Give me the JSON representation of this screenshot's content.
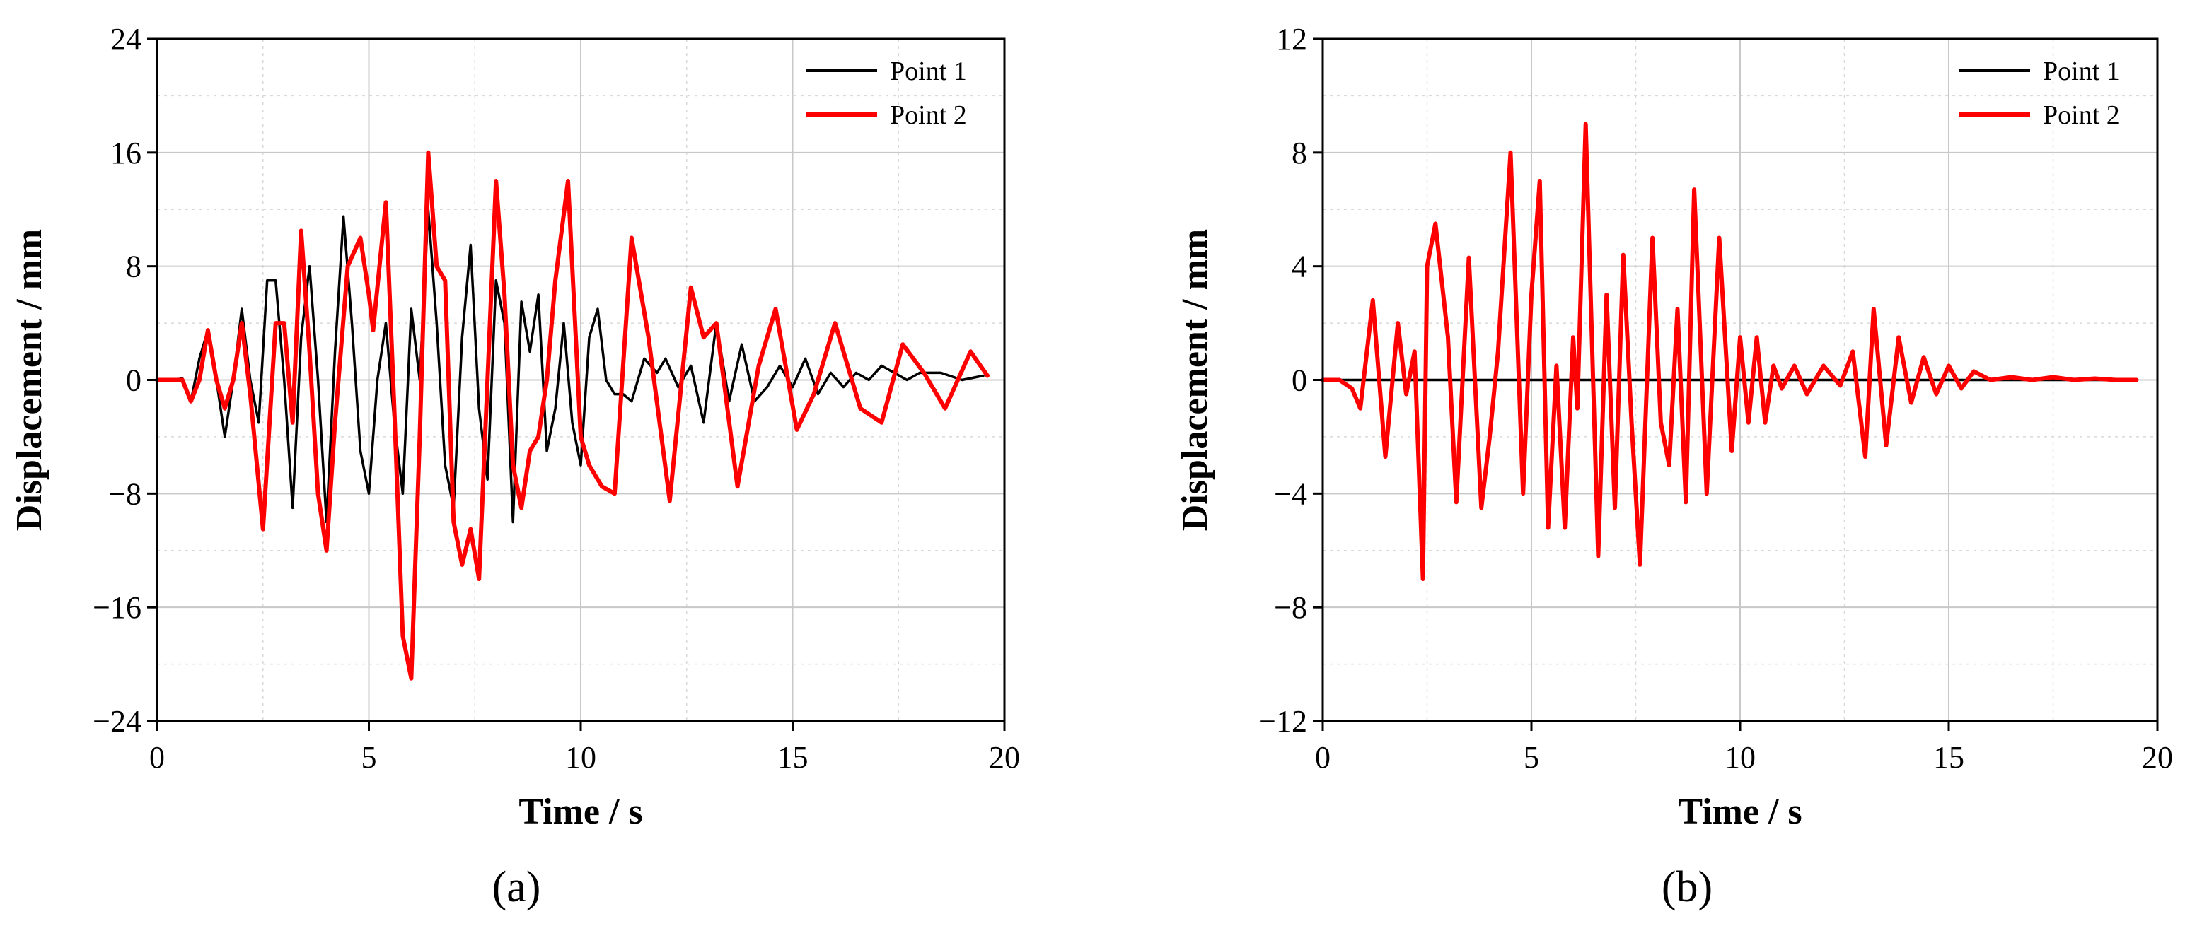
{
  "chart_data": [
    {
      "type": "line",
      "panel_label": "(a)",
      "xlabel": "Time / s",
      "ylabel": "Displacement / mm",
      "xlim": [
        0,
        20
      ],
      "ylim": [
        -24,
        24
      ],
      "xticks": [
        0,
        5,
        10,
        15,
        20
      ],
      "yticks": [
        -24,
        -16,
        -8,
        0,
        8,
        16,
        24
      ],
      "grid": true,
      "legend_position": "top-right",
      "series": [
        {
          "name": "Point 1",
          "color": "#000000",
          "x": [
            0,
            0.3,
            0.6,
            0.8,
            1.0,
            1.2,
            1.4,
            1.6,
            1.8,
            2.0,
            2.2,
            2.4,
            2.6,
            2.8,
            3.0,
            3.2,
            3.4,
            3.6,
            3.8,
            4.0,
            4.2,
            4.4,
            4.6,
            4.8,
            5.0,
            5.2,
            5.4,
            5.6,
            5.8,
            6.0,
            6.2,
            6.4,
            6.6,
            6.8,
            7.0,
            7.2,
            7.4,
            7.6,
            7.8,
            8.0,
            8.2,
            8.4,
            8.6,
            8.8,
            9.0,
            9.2,
            9.4,
            9.6,
            9.8,
            10.0,
            10.2,
            10.4,
            10.6,
            10.8,
            11.0,
            11.2,
            11.5,
            11.8,
            12.0,
            12.3,
            12.6,
            12.9,
            13.2,
            13.5,
            13.8,
            14.1,
            14.4,
            14.7,
            15.0,
            15.3,
            15.6,
            15.9,
            16.2,
            16.5,
            16.8,
            17.1,
            17.4,
            17.7,
            18.0,
            18.5,
            19.0,
            19.5
          ],
          "y": [
            0,
            0,
            0.1,
            -1.5,
            1.5,
            3.5,
            0,
            -4.0,
            0,
            5.0,
            0,
            -3.0,
            7.0,
            7.0,
            0,
            -9.0,
            3.0,
            8.0,
            0,
            -10.0,
            2.0,
            11.5,
            4.0,
            -5.0,
            -8.0,
            0,
            4.0,
            -3.0,
            -8.0,
            5.0,
            0,
            12.0,
            4.0,
            -6.0,
            -9.0,
            3.0,
            9.5,
            -2.0,
            -7.0,
            7.0,
            4.0,
            -10.0,
            5.5,
            2.0,
            6.0,
            -5.0,
            -2.0,
            4.0,
            -3.0,
            -6.0,
            3.0,
            5.0,
            0,
            -1.0,
            -1.0,
            -1.5,
            1.5,
            0.5,
            1.5,
            -0.5,
            1.0,
            -3.0,
            4.0,
            -1.5,
            2.5,
            -1.5,
            -0.5,
            1.0,
            -0.5,
            1.5,
            -1.0,
            0.5,
            -0.5,
            0.5,
            0,
            1.0,
            0.5,
            0,
            0.5,
            0.5,
            0,
            0.3
          ]
        },
        {
          "name": "Point 2",
          "color": "#ff0000",
          "x": [
            0,
            0.3,
            0.6,
            0.8,
            1.0,
            1.2,
            1.4,
            1.6,
            1.8,
            2.0,
            2.2,
            2.5,
            2.8,
            3.0,
            3.2,
            3.4,
            3.6,
            3.8,
            4.0,
            4.2,
            4.5,
            4.8,
            5.0,
            5.1,
            5.4,
            5.6,
            5.8,
            6.0,
            6.2,
            6.4,
            6.6,
            6.8,
            7.0,
            7.2,
            7.4,
            7.6,
            7.8,
            8.0,
            8.2,
            8.4,
            8.6,
            8.8,
            9.0,
            9.2,
            9.4,
            9.7,
            10.0,
            10.2,
            10.5,
            10.8,
            11.2,
            11.6,
            12.1,
            12.6,
            12.9,
            13.2,
            13.7,
            14.2,
            14.6,
            15.1,
            15.5,
            16.0,
            16.6,
            17.1,
            17.6,
            18.1,
            18.6,
            19.2,
            19.6
          ],
          "y": [
            0,
            0,
            0,
            -1.5,
            0,
            3.5,
            0,
            -2.0,
            0,
            4.0,
            -1.0,
            -10.5,
            4.0,
            4.0,
            -3.0,
            10.5,
            2.0,
            -8.0,
            -12.0,
            -3.0,
            8.0,
            10.0,
            6.0,
            3.5,
            12.5,
            -2.0,
            -18.0,
            -21.0,
            -4.0,
            16.0,
            8.0,
            7.0,
            -10.0,
            -13.0,
            -10.5,
            -14.0,
            0,
            14.0,
            6.0,
            -6.0,
            -9.0,
            -5.0,
            -4.0,
            0,
            7.0,
            14.0,
            -4.0,
            -6.0,
            -7.5,
            -8.0,
            10.0,
            3.0,
            -8.5,
            6.5,
            3.0,
            4.0,
            -7.5,
            1.0,
            5.0,
            -3.5,
            -1.0,
            4.0,
            -2.0,
            -3.0,
            2.5,
            0.5,
            -2.0,
            2.0,
            0.3
          ]
        }
      ]
    },
    {
      "type": "line",
      "panel_label": "(b)",
      "xlabel": "Time / s",
      "ylabel": "Displacement / mm",
      "xlim": [
        0,
        20
      ],
      "ylim": [
        -12,
        12
      ],
      "xticks": [
        0,
        5,
        10,
        15,
        20
      ],
      "yticks": [
        -12,
        -8,
        -4,
        0,
        4,
        8,
        12
      ],
      "grid": true,
      "legend_position": "top-right",
      "series": [
        {
          "name": "Point 1",
          "color": "#000000",
          "x": [
            0,
            19.5
          ],
          "y": [
            0,
            0
          ]
        },
        {
          "name": "Point 2",
          "color": "#ff0000",
          "x": [
            0,
            0.4,
            0.7,
            0.9,
            1.2,
            1.5,
            1.8,
            2.0,
            2.2,
            2.4,
            2.5,
            2.7,
            3.0,
            3.2,
            3.5,
            3.8,
            4.0,
            4.2,
            4.5,
            4.8,
            5.0,
            5.2,
            5.4,
            5.6,
            5.8,
            6.0,
            6.1,
            6.3,
            6.6,
            6.8,
            7.0,
            7.2,
            7.4,
            7.6,
            7.9,
            8.1,
            8.3,
            8.5,
            8.7,
            8.9,
            9.2,
            9.5,
            9.8,
            10.0,
            10.2,
            10.4,
            10.6,
            10.8,
            11.0,
            11.3,
            11.6,
            12.0,
            12.4,
            12.7,
            13.0,
            13.2,
            13.5,
            13.8,
            14.1,
            14.4,
            14.7,
            15.0,
            15.3,
            15.6,
            16.0,
            16.5,
            17.0,
            17.5,
            18.0,
            18.5,
            19.0,
            19.5
          ],
          "y": [
            0,
            0,
            -0.3,
            -1.0,
            2.8,
            -2.7,
            2.0,
            -0.5,
            1.0,
            -7.0,
            4.0,
            5.5,
            1.5,
            -4.3,
            4.3,
            -4.5,
            -2.0,
            1.0,
            8.0,
            -4.0,
            3.0,
            7.0,
            -5.2,
            0.5,
            -5.2,
            1.5,
            -1.0,
            9.0,
            -6.2,
            3.0,
            -4.5,
            4.4,
            -1.5,
            -6.5,
            5.0,
            -1.5,
            -3.0,
            2.5,
            -4.3,
            6.7,
            -4.0,
            5.0,
            -2.5,
            1.5,
            -1.5,
            1.5,
            -1.5,
            0.5,
            -0.3,
            0.5,
            -0.5,
            0.5,
            -0.2,
            1.0,
            -2.7,
            2.5,
            -2.3,
            1.5,
            -0.8,
            0.8,
            -0.5,
            0.5,
            -0.3,
            0.3,
            0,
            0.1,
            0,
            0.1,
            0,
            0.05,
            0,
            0
          ]
        }
      ]
    }
  ]
}
